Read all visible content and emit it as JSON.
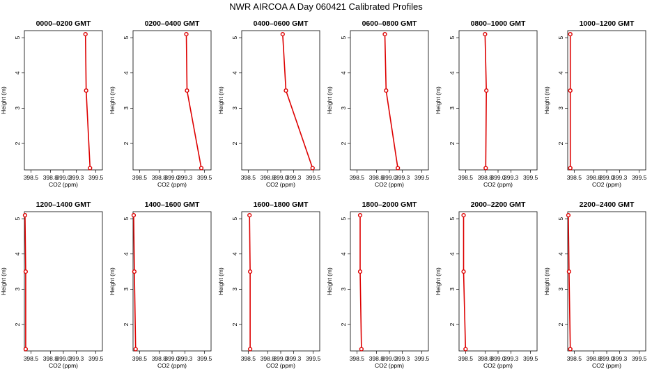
{
  "title": "NWR AIRCOA A  Day 060421  Calibrated Profiles",
  "colors": {
    "line": "#dd0000",
    "marker": "#dd0000",
    "frame": "#000000"
  },
  "chart_data": {
    "type": "line",
    "layout": "2x6 small multiples",
    "xlabel": "CO2 (ppm)",
    "ylabel": "Height (m)",
    "xlim": [
      398.4,
      399.6
    ],
    "ylim": [
      1.25,
      5.2
    ],
    "xticks": [
      398.5,
      398.8,
      399.0,
      399.2,
      399.5
    ],
    "xtick_labels": [
      "398.5",
      "398.8",
      "399.0",
      "399.3",
      "399.5"
    ],
    "yticks": [
      2,
      3,
      4,
      5
    ],
    "ytick_labels": [
      "2",
      "3",
      "4",
      "5"
    ],
    "panels": [
      {
        "title": "0000–0200 GMT",
        "points": [
          {
            "x": 399.34,
            "y": 5.1
          },
          {
            "x": 399.35,
            "y": 3.5
          },
          {
            "x": 399.41,
            "y": 1.3
          }
        ]
      },
      {
        "title": "0200–0400 GMT",
        "points": [
          {
            "x": 399.22,
            "y": 5.1
          },
          {
            "x": 399.23,
            "y": 3.5
          },
          {
            "x": 399.45,
            "y": 1.3
          }
        ]
      },
      {
        "title": "0400–0600 GMT",
        "points": [
          {
            "x": 399.03,
            "y": 5.1
          },
          {
            "x": 399.08,
            "y": 3.5
          },
          {
            "x": 399.49,
            "y": 1.3
          }
        ]
      },
      {
        "title": "0600–0800 GMT",
        "points": [
          {
            "x": 398.93,
            "y": 5.1
          },
          {
            "x": 398.95,
            "y": 3.5
          },
          {
            "x": 399.13,
            "y": 1.3
          }
        ]
      },
      {
        "title": "0800–1000 GMT",
        "points": [
          {
            "x": 398.8,
            "y": 5.1
          },
          {
            "x": 398.82,
            "y": 3.5
          },
          {
            "x": 398.81,
            "y": 1.3
          }
        ]
      },
      {
        "title": "1000–1200 GMT",
        "points": [
          {
            "x": 398.44,
            "y": 5.1
          },
          {
            "x": 398.44,
            "y": 3.5
          },
          {
            "x": 398.44,
            "y": 1.3
          }
        ]
      },
      {
        "title": "1200–1400 GMT",
        "points": [
          {
            "x": 398.41,
            "y": 5.1
          },
          {
            "x": 398.42,
            "y": 3.5
          },
          {
            "x": 398.42,
            "y": 1.3
          }
        ]
      },
      {
        "title": "1400–1600 GMT",
        "points": [
          {
            "x": 398.41,
            "y": 5.1
          },
          {
            "x": 398.42,
            "y": 3.5
          },
          {
            "x": 398.44,
            "y": 1.3
          }
        ]
      },
      {
        "title": "1600–1800 GMT",
        "points": [
          {
            "x": 398.52,
            "y": 5.1
          },
          {
            "x": 398.53,
            "y": 3.5
          },
          {
            "x": 398.53,
            "y": 1.3
          }
        ]
      },
      {
        "title": "1800–2000 GMT",
        "points": [
          {
            "x": 398.55,
            "y": 5.1
          },
          {
            "x": 398.55,
            "y": 3.5
          },
          {
            "x": 398.57,
            "y": 1.3
          }
        ]
      },
      {
        "title": "2000–2200 GMT",
        "points": [
          {
            "x": 398.47,
            "y": 5.1
          },
          {
            "x": 398.47,
            "y": 3.5
          },
          {
            "x": 398.5,
            "y": 1.3
          }
        ]
      },
      {
        "title": "2200–2400 GMT",
        "points": [
          {
            "x": 398.41,
            "y": 5.1
          },
          {
            "x": 398.42,
            "y": 3.5
          },
          {
            "x": 398.44,
            "y": 1.3
          }
        ]
      }
    ]
  }
}
